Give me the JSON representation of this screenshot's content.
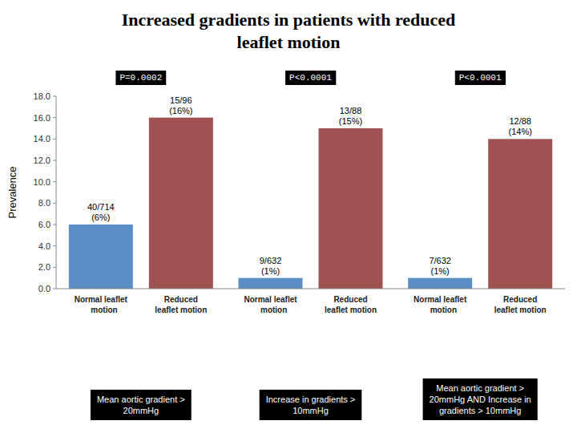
{
  "chart_data": {
    "type": "bar",
    "title": "Increased gradients in patients with reduced\nleaflet motion",
    "y_label": "Prevalence",
    "categories": [
      "Normal leaflet\n   motion",
      "Reduced\nleaflet motion",
      "Normal leaflet\n   motion",
      "Reduced\nleaflet motion",
      "Normal leaflet\n   motion",
      "Reduced\nleaflet motion"
    ],
    "values": [
      6.0,
      16.0,
      1.0,
      15.0,
      1.0,
      14.0
    ],
    "value_labels": [
      "40/714\n(6%)",
      "15/96\n(16%)",
      "9/632\n(1%)",
      "13/88\n(15%)",
      "7/632\n(1%)",
      "12/88\n(14%)"
    ],
    "data_labels": true,
    "colors": [
      "#5b8ec4",
      "#a05252",
      "#5b8ec4",
      "#a05252",
      "#5b8ec4",
      "#a05252"
    ],
    "group_labels": [
      "Mean aortic gradient >\n20mmHg",
      "Increase in gradients >\n10mmHg",
      "Mean aortic gradient >\n20mmHg AND Increase in\ngradients > 10mmHg"
    ],
    "annotations": [
      "P=0.0002",
      "P<0.0001",
      "P<0.0001"
    ],
    "ylim": [
      0,
      18.0
    ],
    "yticks": [
      {
        "value": 0.0,
        "label": "0.0"
      },
      {
        "value": 2.0,
        "label": "2.0"
      },
      {
        "value": 4.0,
        "label": "4.0"
      },
      {
        "value": 6.0,
        "label": "6.0"
      },
      {
        "value": 8.0,
        "label": "8.0"
      },
      {
        "value": 10.0,
        "label": "10.0"
      },
      {
        "value": 12.0,
        "label": "12.0"
      },
      {
        "value": 14.0,
        "label": "14.0"
      },
      {
        "value": 16.0,
        "label": "16.0"
      },
      {
        "value": 18.0,
        "label": "18.0"
      }
    ],
    "grid": false
  }
}
